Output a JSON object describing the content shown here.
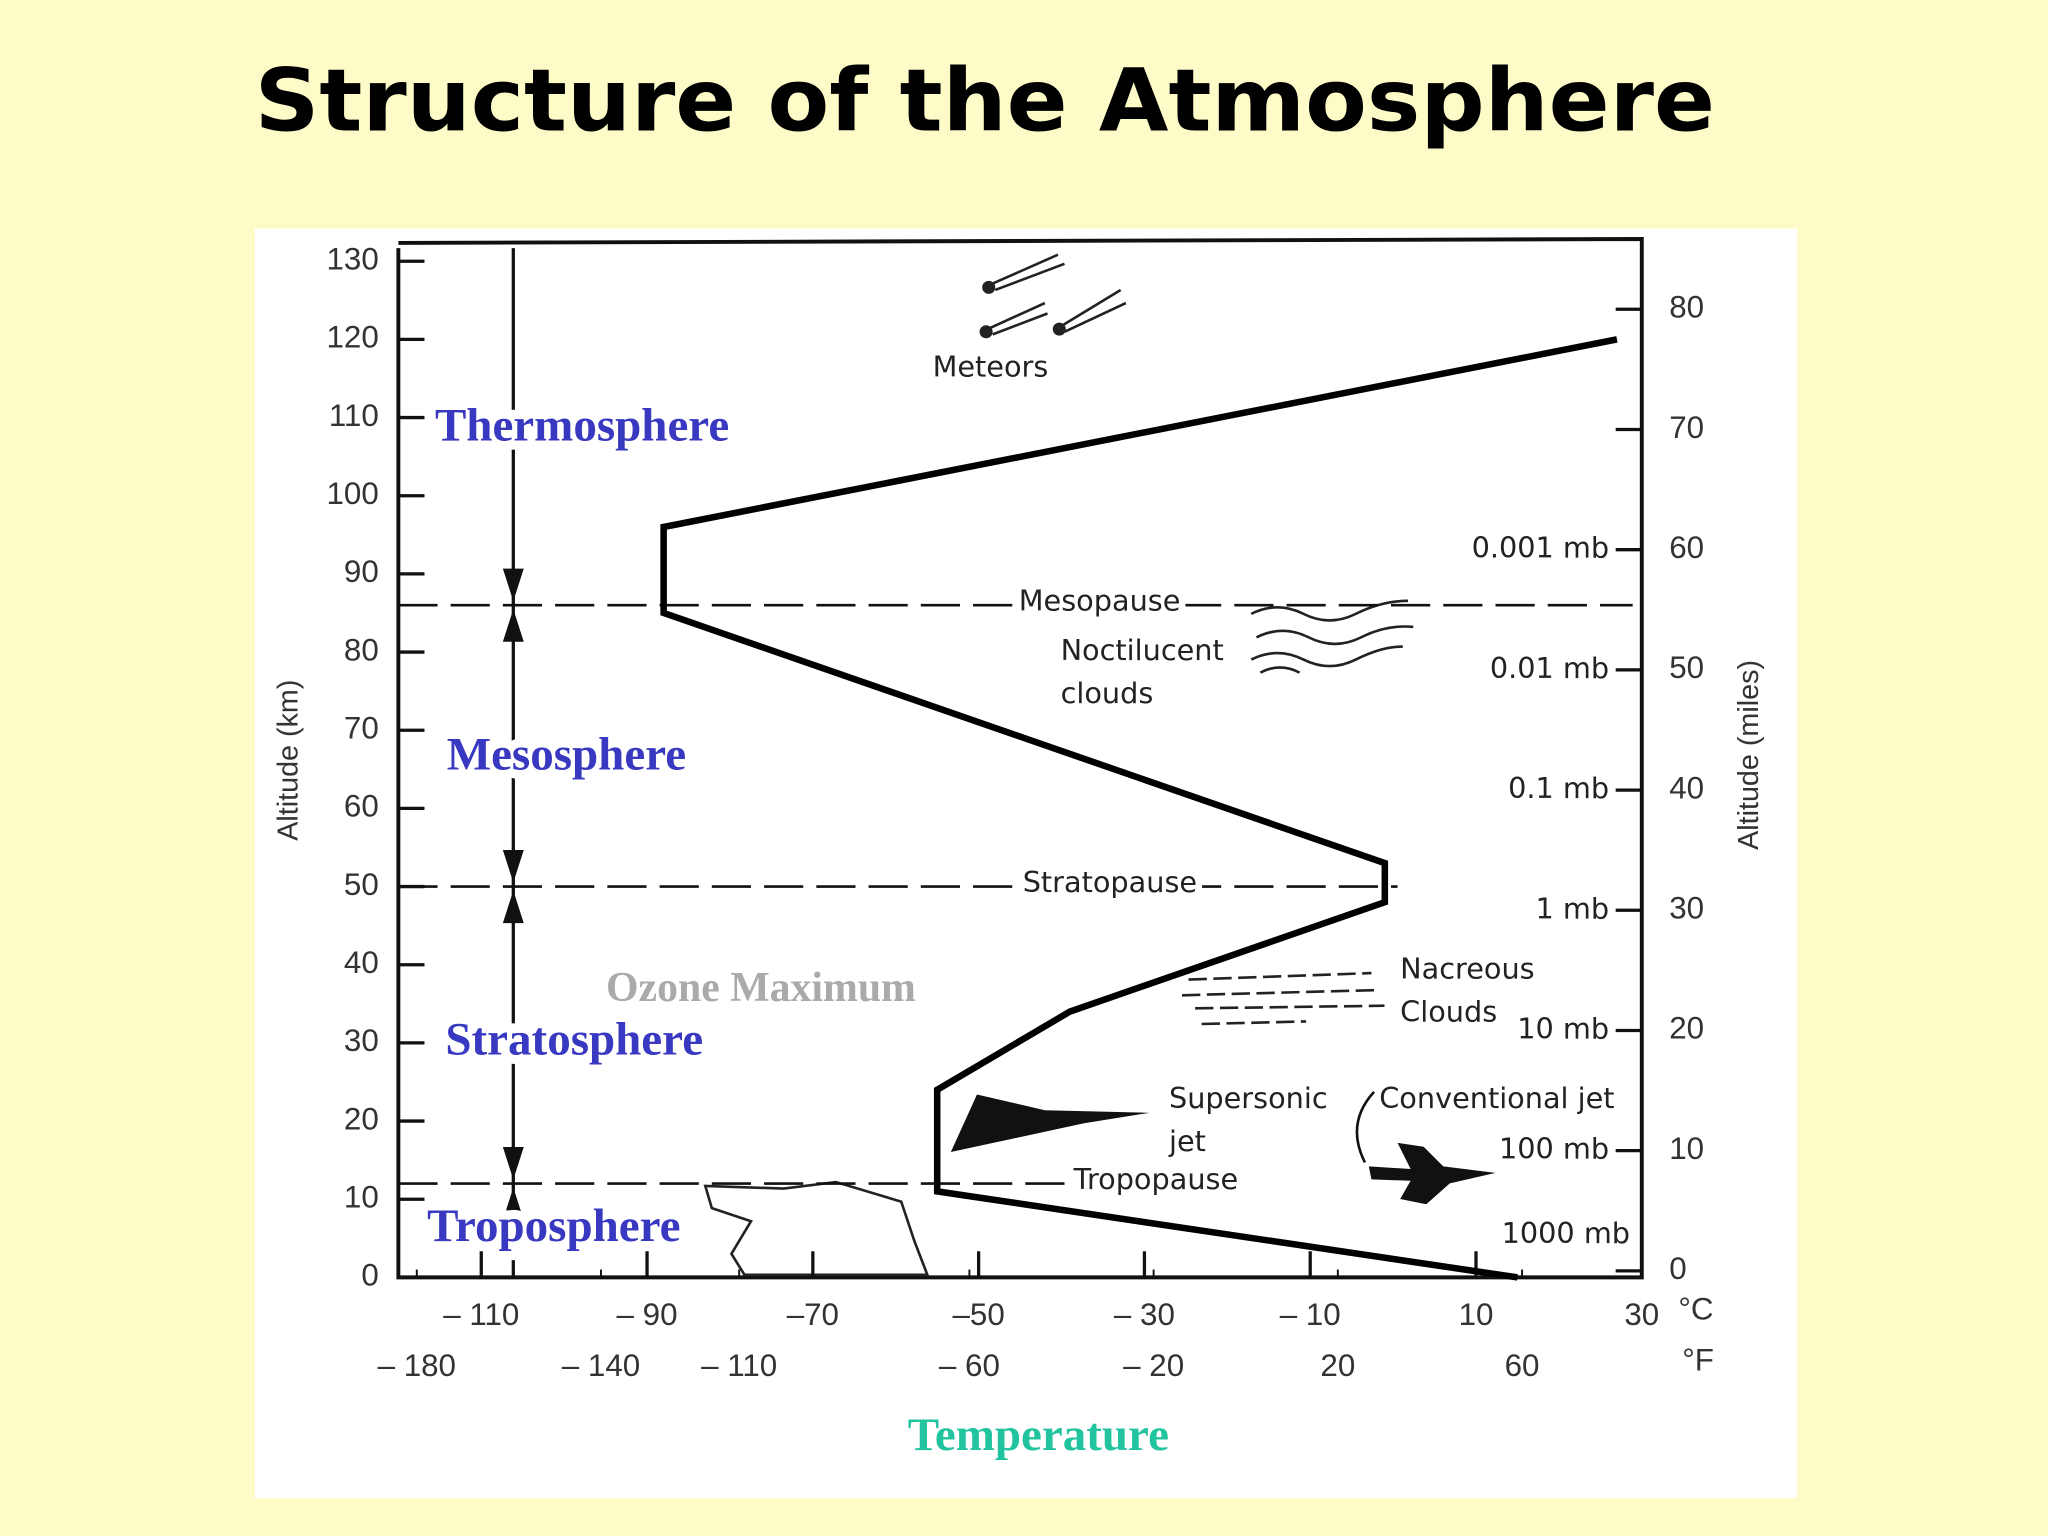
{
  "title": "Structure of the Atmosphere",
  "chart_data": {
    "type": "line",
    "xlabel": "Temperature",
    "ylabel": "Altitude (km)",
    "y2label": "Altitude (miles)",
    "x": [
      15,
      -55,
      -55,
      -39,
      -1,
      -1,
      -88,
      -88,
      27
    ],
    "values": [
      0,
      11,
      24,
      34,
      48,
      53,
      85,
      96,
      120
    ],
    "color": "#000000",
    "xlim": [
      -120,
      30
    ],
    "xticks": [
      {
        "value": -110,
        "label": "– 110"
      },
      {
        "value": -90,
        "label": "– 90"
      },
      {
        "value": -70,
        "label": "–70"
      },
      {
        "value": -50,
        "label": "–50"
      },
      {
        "value": -30,
        "label": "– 30"
      },
      {
        "value": -10,
        "label": "– 10"
      },
      10,
      30
    ],
    "x_unit": "°C",
    "x2lim": [
      -184,
      86
    ],
    "x2ticks": [
      {
        "value": -180,
        "label": "– 180"
      },
      {
        "value": -140,
        "label": "– 140"
      },
      {
        "value": -110,
        "label": "– 110"
      },
      {
        "value": -60,
        "label": "– 60"
      },
      {
        "value": -20,
        "label": "– 20"
      },
      20,
      60
    ],
    "x2_unit": "°F",
    "ylim": [
      0,
      130
    ],
    "yticks": [
      0,
      10,
      20,
      30,
      40,
      50,
      60,
      70,
      80,
      90,
      100,
      110,
      120,
      130
    ],
    "y2lim": [
      0,
      84
    ],
    "y2ticks": [
      0,
      10,
      20,
      30,
      40,
      50,
      60,
      70,
      80
    ],
    "pressure_levels": [
      {
        "label": "0.001 mb",
        "miles": 60
      },
      {
        "label": "0.01 mb",
        "miles": 50
      },
      {
        "label": "0.1 mb",
        "miles": 40
      },
      {
        "label": "1 mb",
        "miles": 30
      },
      {
        "label": "10 mb",
        "miles": 20
      },
      {
        "label": "100 mb",
        "miles": 10
      },
      {
        "label": "1000 mb",
        "miles": 3
      }
    ],
    "boundaries": [
      {
        "label": "Mesopause",
        "altitude": 86
      },
      {
        "label": "Stratopause",
        "altitude": 50
      },
      {
        "label": "Tropopause",
        "altitude": 12
      }
    ],
    "layers": [
      "Thermosphere",
      "Mesosphere",
      "Stratosphere",
      "Troposphere"
    ],
    "annotations": [
      {
        "lines": [
          "Meteors"
        ]
      },
      {
        "lines": [
          "Noctilucent",
          "clouds"
        ]
      },
      {
        "lines": [
          "Nacreous",
          "Clouds"
        ]
      },
      {
        "lines": [
          "Supersonic",
          "jet"
        ]
      },
      {
        "lines": [
          "Conventional jet"
        ]
      }
    ],
    "ozone_label": "Ozone Maximum"
  }
}
